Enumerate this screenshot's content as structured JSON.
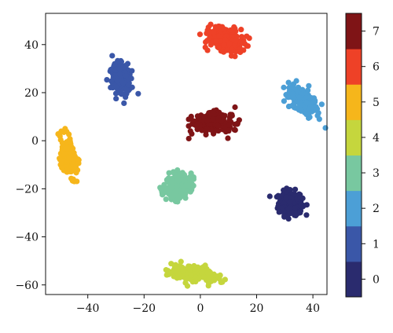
{
  "chart_data": {
    "type": "scatter",
    "title": "",
    "xlabel": "",
    "ylabel": "",
    "xlim": [
      -55,
      45
    ],
    "ylim": [
      -64,
      53
    ],
    "grid": false,
    "x_ticks": [
      -40,
      -20,
      0,
      20,
      40
    ],
    "y_ticks": [
      -60,
      -40,
      -20,
      0,
      20,
      40
    ],
    "x_tick_labels": [
      "−40",
      "−20",
      "0",
      "20",
      "40"
    ],
    "y_tick_labels": [
      "−60",
      "−40",
      "−20",
      "0",
      "20",
      "40"
    ],
    "colorbar": {
      "min": -0.5,
      "max": 7.5,
      "ticks": [
        0,
        1,
        2,
        3,
        4,
        5,
        6,
        7
      ],
      "tick_labels": [
        "0",
        "1",
        "2",
        "3",
        "4",
        "5",
        "6",
        "7"
      ],
      "colors": [
        "#2a2b6e",
        "#3a57a8",
        "#4c9fd6",
        "#78c8a0",
        "#c5d63d",
        "#f6b61b",
        "#ee4127",
        "#7f1416"
      ]
    },
    "clusters": [
      {
        "class": 0,
        "cx": 32,
        "cy": -26,
        "rx": 3.5,
        "ry": 4.5,
        "angle": 0,
        "n": 230
      },
      {
        "class": 1,
        "cx": -28,
        "cy": 26,
        "rx": 3,
        "ry": 5.5,
        "angle": 15,
        "n": 230
      },
      {
        "class": 2,
        "cx": 36,
        "cy": 17,
        "rx": 3,
        "ry": 6.5,
        "angle": 40,
        "n": 230
      },
      {
        "class": 3,
        "cx": -8,
        "cy": -19,
        "rx": 3.5,
        "ry": 5.5,
        "angle": -30,
        "n": 230
      },
      {
        "class": 4,
        "cx": -3,
        "cy": -55,
        "rx": 2.5,
        "ry": 7,
        "angle": 80,
        "n": 230
      },
      {
        "class": 5,
        "cx": -47,
        "cy": -7,
        "rx": 2,
        "ry": 7.5,
        "angle": 10,
        "n": 230
      },
      {
        "class": 6,
        "cx": 9,
        "cy": 42,
        "rx": 3.5,
        "ry": 6.5,
        "angle": 70,
        "n": 230
      },
      {
        "class": 7,
        "cx": 4,
        "cy": 8,
        "rx": 3.5,
        "ry": 7,
        "angle": 90,
        "n": 230
      }
    ]
  }
}
